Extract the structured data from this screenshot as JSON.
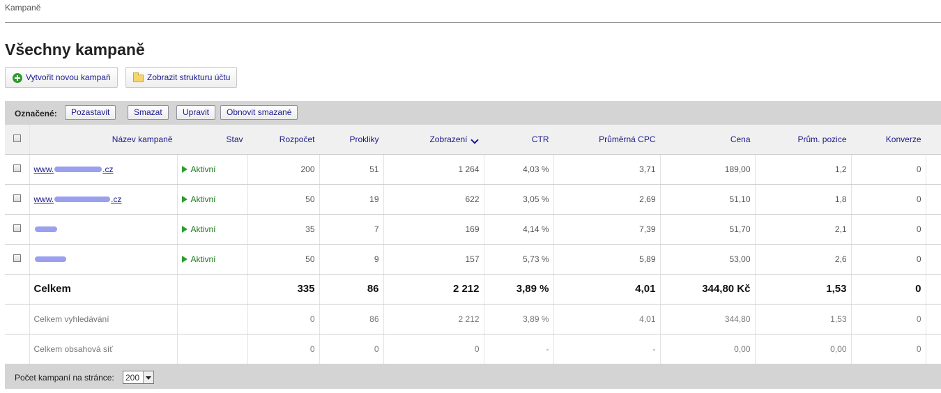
{
  "breadcrumb": "Kampaně",
  "page_title": "Všechny kampaně",
  "toolbar": {
    "create_label": "Vytvořit novou kampaň",
    "structure_label": "Zobrazit strukturu účtu"
  },
  "bulk": {
    "label": "Označené:",
    "pause": "Pozastavit",
    "delete": "Smazat",
    "edit": "Upravit",
    "restore": "Obnovit smazané"
  },
  "table": {
    "headers": {
      "name": "Název kampaně",
      "status": "Stav",
      "budget": "Rozpočet",
      "clicks": "Prokliky",
      "impressions": "Zobrazení",
      "ctr": "CTR",
      "cpc": "Průměrná CPC",
      "cost": "Cena",
      "position": "Prům. pozice",
      "conversions": "Konverze"
    },
    "rows": [
      {
        "name_prefix": "www.",
        "name_suffix": ".cz",
        "status": "Aktivní",
        "budget": "200",
        "clicks": "51",
        "impressions": "1 264",
        "ctr": "4,03 %",
        "cpc": "3,71",
        "cost": "189,00",
        "position": "1,2",
        "conversions": "0"
      },
      {
        "name_prefix": "www.",
        "name_suffix": ".cz",
        "status": "Aktivní",
        "budget": "50",
        "clicks": "19",
        "impressions": "622",
        "ctr": "3,05 %",
        "cpc": "2,69",
        "cost": "51,10",
        "position": "1,8",
        "conversions": "0"
      },
      {
        "name_prefix": "",
        "name_suffix": "",
        "status": "Aktivní",
        "budget": "35",
        "clicks": "7",
        "impressions": "169",
        "ctr": "4,14 %",
        "cpc": "7,39",
        "cost": "51,70",
        "position": "2,1",
        "conversions": "0"
      },
      {
        "name_prefix": "",
        "name_suffix": "",
        "status": "Aktivní",
        "budget": "50",
        "clicks": "9",
        "impressions": "157",
        "ctr": "5,73 %",
        "cpc": "5,89",
        "cost": "53,00",
        "position": "2,6",
        "conversions": "0"
      }
    ],
    "total": {
      "label": "Celkem",
      "budget": "335",
      "clicks": "86",
      "impressions": "2 212",
      "ctr": "3,89 %",
      "cpc": "4,01",
      "cost": "344,80 Kč",
      "position": "1,53",
      "conversions": "0"
    },
    "search_total": {
      "label": "Celkem vyhledávání",
      "budget": "0",
      "clicks": "86",
      "impressions": "2 212",
      "ctr": "3,89 %",
      "cpc": "4,01",
      "cost": "344,80",
      "position": "1,53",
      "conversions": "0"
    },
    "content_total": {
      "label": "Celkem obsahová síť",
      "budget": "0",
      "clicks": "0",
      "impressions": "0",
      "ctr": "-",
      "cpc": "-",
      "cost": "0,00",
      "position": "0,00",
      "conversions": "0"
    }
  },
  "footer": {
    "per_page_label": "Počet kampaní na stránce:",
    "per_page_value": "200"
  },
  "colors": {
    "link": "#1a1a8c",
    "active_status": "#1c7a1c",
    "bar_background": "#d4d4d4",
    "header_background": "#f0f0f0"
  }
}
